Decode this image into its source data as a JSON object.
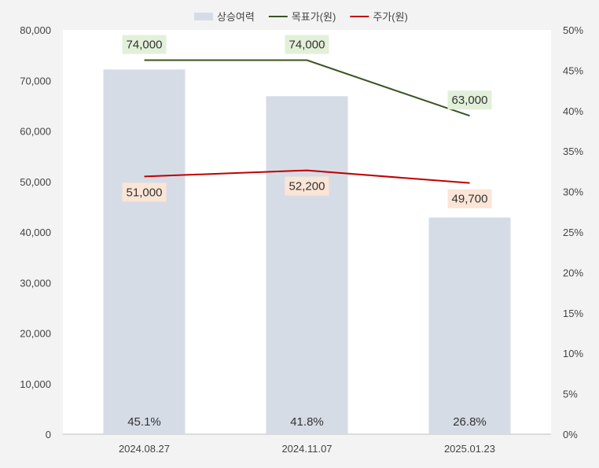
{
  "chart_data": {
    "type": "bar",
    "categories": [
      "2024.08.27",
      "2024.11.07",
      "2025.01.23"
    ],
    "series": [
      {
        "name": "상승여력",
        "kind": "bar",
        "axis": "right",
        "values": [
          45.1,
          41.8,
          26.8
        ],
        "labels": [
          "45.1%",
          "41.8%",
          "26.8%"
        ],
        "color": "#d6dce6"
      },
      {
        "name": "목표가(원)",
        "kind": "line",
        "axis": "left",
        "values": [
          74000,
          74000,
          63000
        ],
        "labels": [
          "74,000",
          "74,000",
          "63,000"
        ],
        "color": "#3b5323",
        "label_bg": "#e2f0d9"
      },
      {
        "name": "주가(원)",
        "kind": "line",
        "axis": "left",
        "values": [
          51000,
          52200,
          49700
        ],
        "labels": [
          "51,000",
          "52,200",
          "49,700"
        ],
        "color": "#c00000",
        "label_bg": "#fbe5d6"
      }
    ],
    "y_left": {
      "range": [
        0,
        80000
      ],
      "ticks": [
        "0",
        "10,000",
        "20,000",
        "30,000",
        "40,000",
        "50,000",
        "60,000",
        "70,000",
        "80,000"
      ]
    },
    "y_right": {
      "range": [
        0,
        50
      ],
      "ticks": [
        "0%",
        "5%",
        "10%",
        "15%",
        "20%",
        "25%",
        "30%",
        "35%",
        "40%",
        "45%",
        "50%"
      ]
    },
    "grid": false,
    "legend_position": "top-center"
  }
}
